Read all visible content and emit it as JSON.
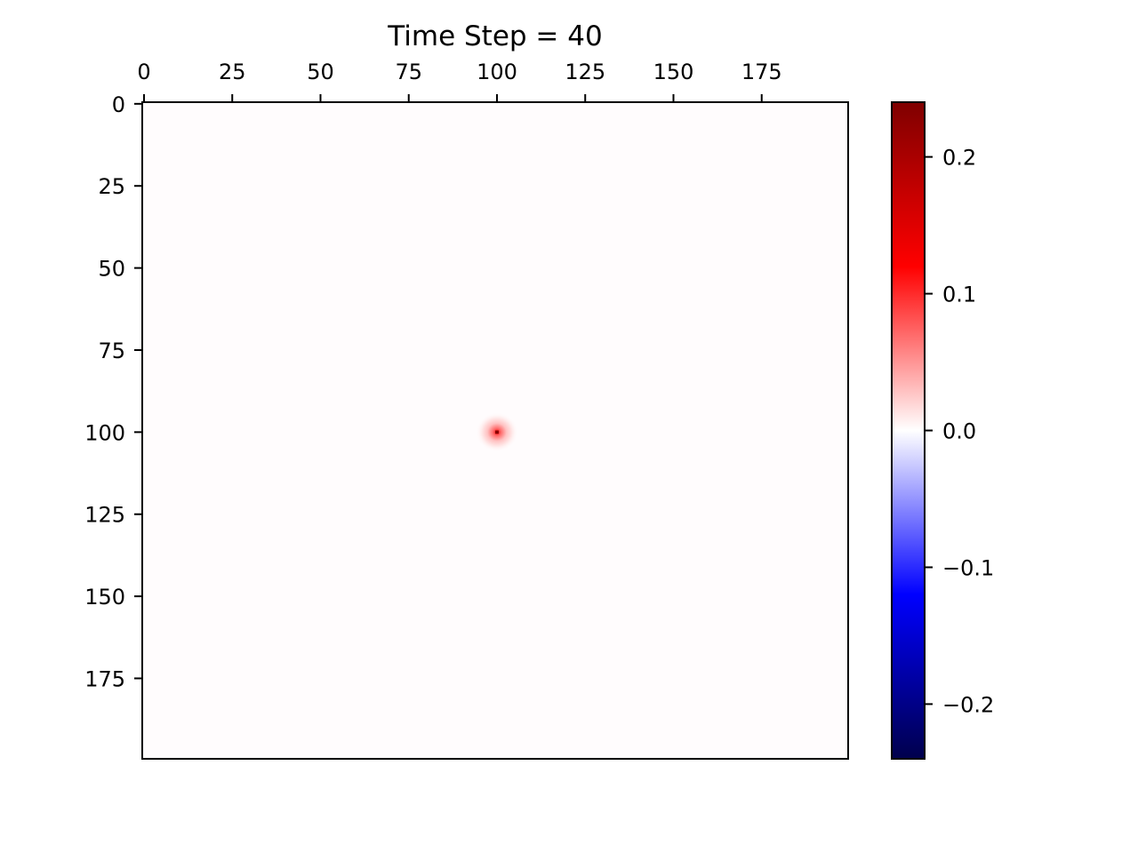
{
  "chart_data": {
    "type": "heatmap",
    "title": "Time Step = 40",
    "xlabel": "",
    "ylabel": "",
    "grid_size": [
      200,
      200
    ],
    "x_axis_position": "top",
    "y_axis_inverted": true,
    "xlim": [
      -0.5,
      199.5
    ],
    "ylim": [
      199.5,
      -0.5
    ],
    "x_ticks": [
      0,
      25,
      50,
      75,
      100,
      125,
      150,
      175
    ],
    "x_tick_labels": [
      "0",
      "25",
      "50",
      "75",
      "100",
      "125",
      "150",
      "175"
    ],
    "y_ticks": [
      0,
      25,
      50,
      75,
      100,
      125,
      150,
      175
    ],
    "y_tick_labels": [
      "0",
      "25",
      "50",
      "75",
      "100",
      "125",
      "150",
      "175"
    ],
    "background_value": 0.0,
    "peak": {
      "x": 100,
      "y": 100,
      "value": 0.2,
      "radius": 6
    },
    "colormap": "seismic",
    "colormap_stops": [
      "#00004c",
      "#0000ff",
      "#ffffff",
      "#ff0000",
      "#7f0000"
    ],
    "colorbar": {
      "location": "right",
      "vmin": -0.24,
      "vmax": 0.24,
      "ticks": [
        0.2,
        0.1,
        0.0,
        -0.1,
        -0.2
      ],
      "tick_labels": [
        "0.2",
        "0.1",
        "0.0",
        "−0.1",
        "−0.2"
      ]
    },
    "grid": false
  }
}
